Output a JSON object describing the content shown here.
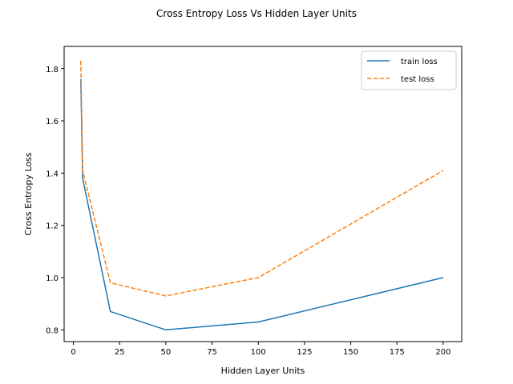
{
  "chart_data": {
    "type": "line",
    "title": "Cross Entropy Loss Vs Hidden Layer Units",
    "xlabel": "Hidden Layer Units",
    "ylabel": "Cross Entropy Loss",
    "xlim": [
      -5,
      210
    ],
    "ylim": [
      0.755,
      1.885
    ],
    "xticks": [
      0,
      25,
      50,
      75,
      100,
      125,
      150,
      175,
      200
    ],
    "yticks": [
      0.8,
      1.0,
      1.2,
      1.4,
      1.6,
      1.8
    ],
    "ytick_labels": [
      "0.8",
      "1.0",
      "1.2",
      "1.4",
      "1.6",
      "1.8"
    ],
    "grid": false,
    "legend_position": "top-right",
    "x": [
      4,
      5,
      20,
      50,
      100,
      200
    ],
    "series": [
      {
        "name": "train loss",
        "values": [
          1.76,
          1.38,
          0.87,
          0.8,
          0.83,
          1.0
        ],
        "color": "#1f77b4",
        "style": "solid"
      },
      {
        "name": "test loss",
        "values": [
          1.83,
          1.41,
          0.98,
          0.93,
          1.0,
          1.41
        ],
        "color": "#ff7f0e",
        "style": "dashed"
      }
    ]
  }
}
